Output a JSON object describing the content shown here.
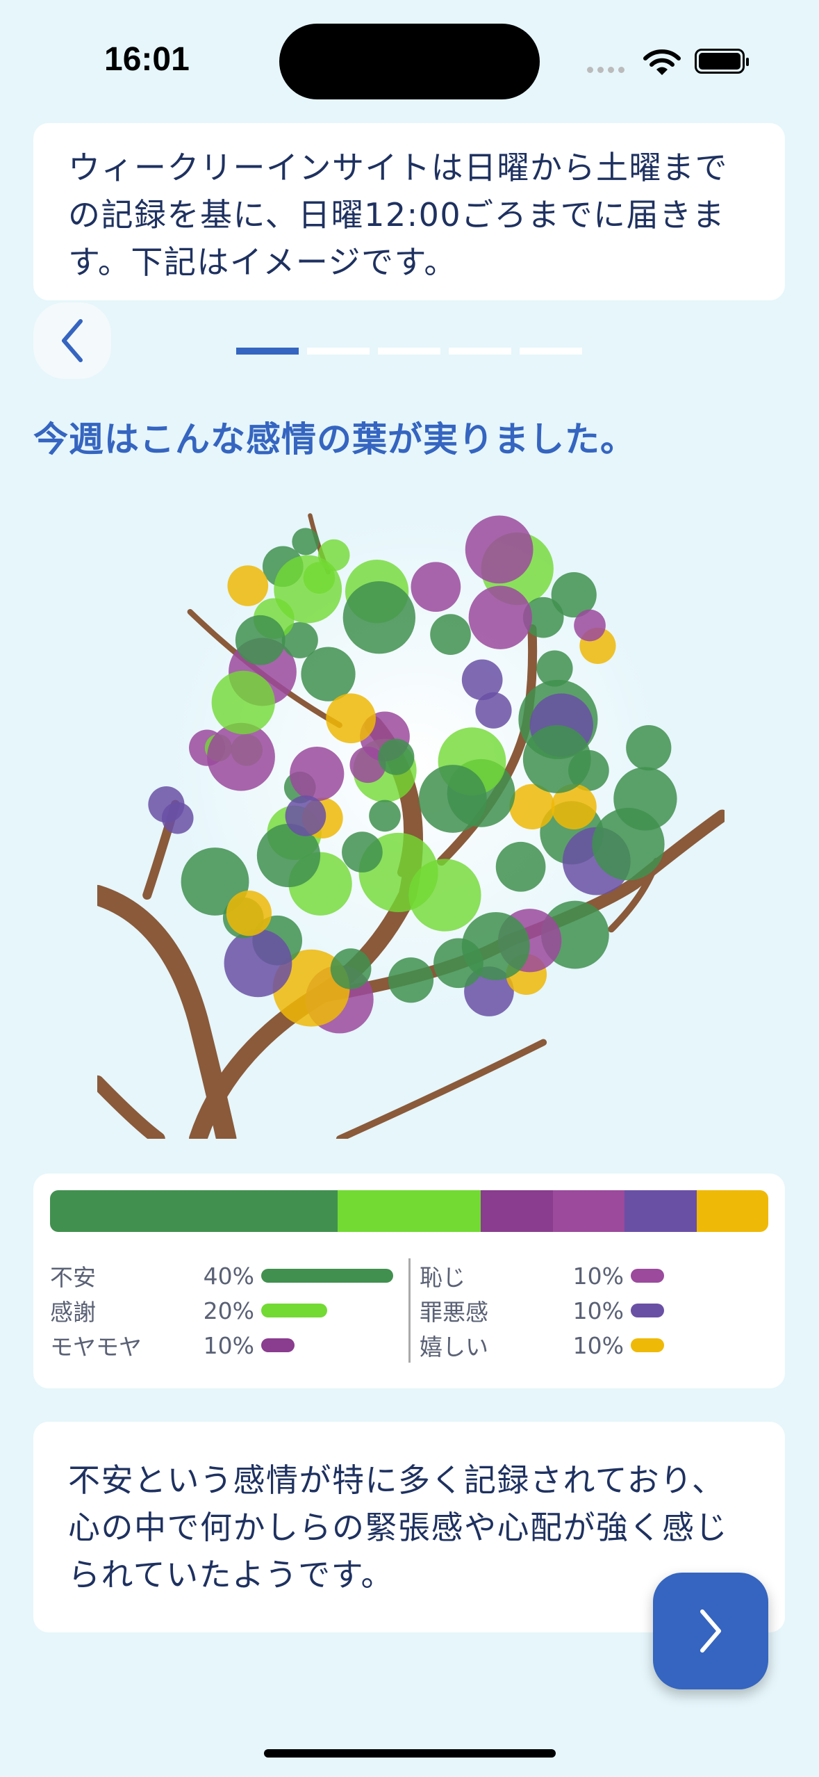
{
  "status_bar": {
    "time": "16:01"
  },
  "info_card": {
    "text": "ウィークリーインサイトは日曜から土曜までの記録を基に、日曜12:00ごろまでに届きます。下記はイメージです。"
  },
  "pager": {
    "current": 1,
    "total": 5
  },
  "heading": "今週はこんな感情の葉が実りました。",
  "tree_colors": {
    "dark_green": "#41904f",
    "light_green": "#72da33",
    "purple": "#9b4a9c",
    "violet": "#6a50a5",
    "yellow": "#efb907",
    "branch": "#8a5a3a"
  },
  "emotions": [
    {
      "label": "不安",
      "percent": 40,
      "percent_text": "40%",
      "color": "#41904f"
    },
    {
      "label": "感謝",
      "percent": 20,
      "percent_text": "20%",
      "color": "#72da33"
    },
    {
      "label": "モヤモヤ",
      "percent": 10,
      "percent_text": "10%",
      "color": "#8a3c8e"
    },
    {
      "label": "恥じ",
      "percent": 10,
      "percent_text": "10%",
      "color": "#9b4a9c"
    },
    {
      "label": "罪悪感",
      "percent": 10,
      "percent_text": "10%",
      "color": "#6a50a5"
    },
    {
      "label": "嬉しい",
      "percent": 10,
      "percent_text": "10%",
      "color": "#efb907"
    }
  ],
  "summary": {
    "text": "不安という感情が特に多く記録されており、心の中で何かしらの緊張感や心配が強く感じられていたようです。"
  },
  "icons": {
    "back": "chevron-left-icon",
    "next": "chevron-right-icon"
  },
  "accent": "#3565c0"
}
